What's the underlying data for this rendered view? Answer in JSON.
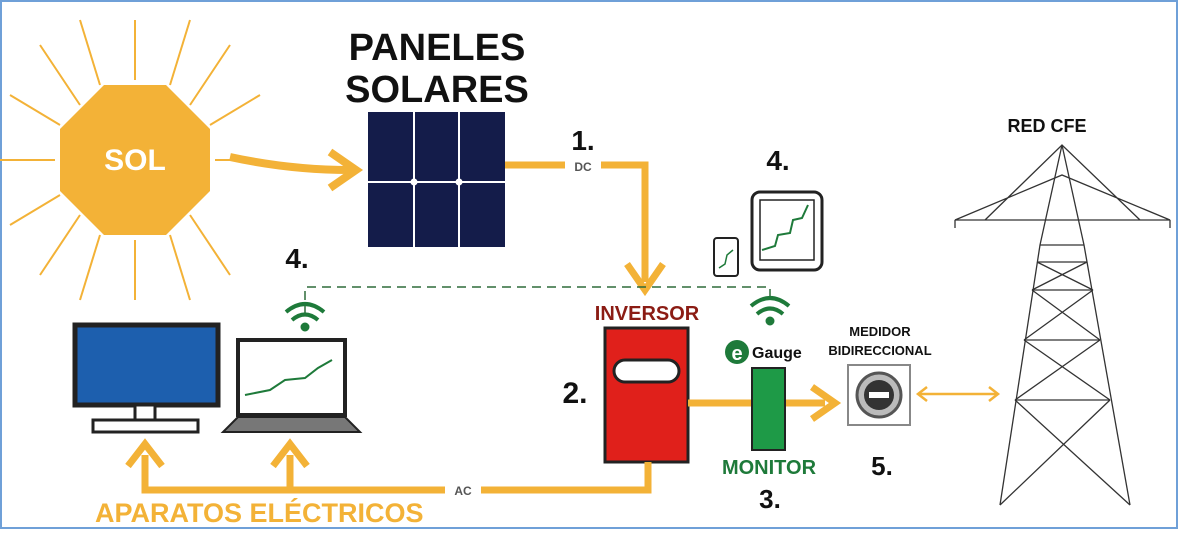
{
  "sun": {
    "label": "SOL"
  },
  "panels": {
    "label_lines": [
      "PANELES",
      "SOLARES"
    ]
  },
  "dc_link": {
    "step": "1.",
    "label": "DC"
  },
  "monitoring_devices": {
    "step": "4."
  },
  "app_link": {
    "step": "4."
  },
  "inverter": {
    "label": "INVERSOR",
    "step": "2."
  },
  "egauge": {
    "logo_letter": "e",
    "logo_text": "Gauge"
  },
  "monitor": {
    "label": "MONITOR",
    "step": "3."
  },
  "meter": {
    "label_lines": [
      "MEDIDOR",
      "BIDIRECCIONAL"
    ],
    "step": "5."
  },
  "grid": {
    "label": "RED CFE"
  },
  "ac_link": {
    "label": "AC"
  },
  "appliances": {
    "label": "APARATOS ELÉCTRICOS"
  }
}
